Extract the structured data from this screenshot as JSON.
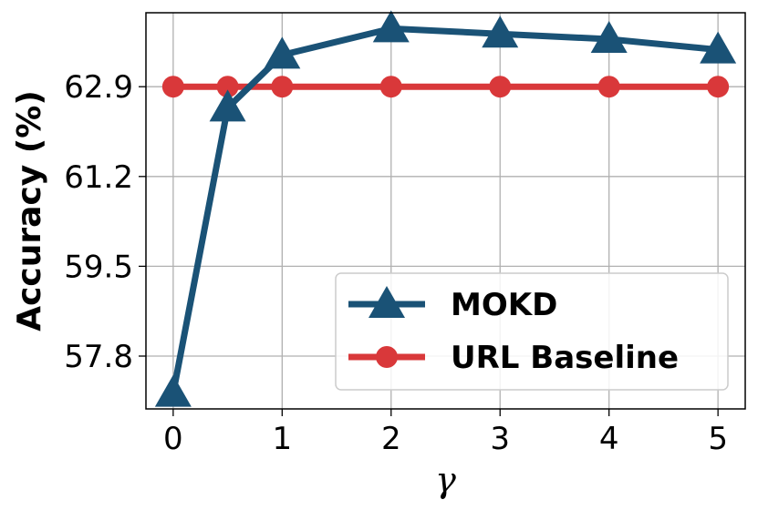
{
  "chart_data": {
    "type": "line",
    "xlabel": "γ",
    "ylabel": "Accuracy (%)",
    "x_ticks": [
      "0",
      "1",
      "2",
      "3",
      "4",
      "5"
    ],
    "y_ticks": [
      "57.8",
      "59.5",
      "61.2",
      "62.9"
    ],
    "xlim": [
      -0.25,
      5.25
    ],
    "ylim": [
      56.8,
      64.3
    ],
    "grid": true,
    "legend_position": "bottom-right",
    "series": [
      {
        "name": "MOKD",
        "color": "#1a5276",
        "marker": "triangle",
        "x": [
          0,
          0.5,
          1,
          2,
          3,
          4,
          5
        ],
        "y": [
          57.1,
          62.5,
          63.5,
          64.0,
          63.9,
          63.8,
          63.6
        ]
      },
      {
        "name": "URL Baseline",
        "color": "#d9383a",
        "marker": "circle",
        "x": [
          0,
          0.5,
          1,
          2,
          3,
          4,
          5
        ],
        "y": [
          62.9,
          62.9,
          62.9,
          62.9,
          62.9,
          62.9,
          62.9
        ]
      }
    ]
  }
}
